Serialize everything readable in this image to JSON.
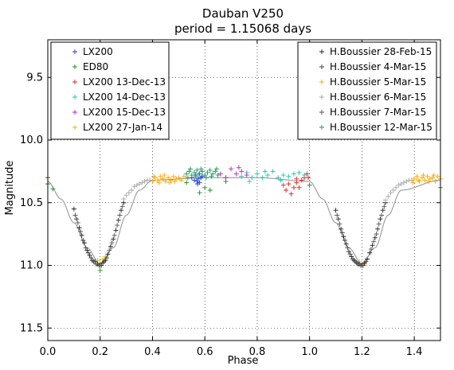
{
  "chart_data": {
    "type": "scatter",
    "title": "Dauban V250",
    "subtitle": "period = 1.15068 days",
    "xlabel": "Phase",
    "ylabel": "Magnitude",
    "xlim": [
      0.0,
      1.5
    ],
    "ylim": [
      11.6,
      9.2
    ],
    "y_inverted": true,
    "x_ticks": [
      "0.0",
      "0.2",
      "0.4",
      "0.6",
      "0.8",
      "1.0",
      "1.2",
      "1.4"
    ],
    "y_ticks": [
      "9.5",
      "10.0",
      "10.5",
      "11.0",
      "11.5"
    ],
    "grid": true,
    "marker": "+",
    "legend_left_position": "top-left",
    "legend_right_position": "top-right",
    "model_curve": {
      "color": "#999999",
      "description_points": {
        "x": [
          0.0,
          0.05,
          0.1,
          0.15,
          0.2,
          0.25,
          0.3,
          0.35,
          0.4,
          0.6,
          0.8,
          1.0,
          1.05,
          1.1,
          1.15,
          1.2,
          1.25,
          1.3,
          1.35,
          1.5
        ],
        "y": [
          10.33,
          10.47,
          10.66,
          10.86,
          10.99,
          10.86,
          10.6,
          10.4,
          10.32,
          10.3,
          10.3,
          10.33,
          10.47,
          10.66,
          10.86,
          10.99,
          10.86,
          10.6,
          10.4,
          10.32
        ]
      }
    },
    "series": [
      {
        "name": "LX200",
        "color": "#1f3fd8",
        "points": [
          [
            0.55,
            10.3
          ],
          [
            0.56,
            10.32
          ],
          [
            0.565,
            10.28
          ],
          [
            0.57,
            10.33
          ],
          [
            0.575,
            10.31
          ],
          [
            0.58,
            10.34
          ],
          [
            0.585,
            10.3
          ],
          [
            0.59,
            10.29
          ],
          [
            0.572,
            10.35
          ],
          [
            0.578,
            10.27
          ]
        ]
      },
      {
        "name": "ED80",
        "color": "#1a8f1a",
        "points": [
          [
            0.0,
            10.35
          ],
          [
            0.02,
            10.39
          ],
          [
            0.2,
            11.04
          ],
          [
            0.53,
            10.34
          ],
          [
            0.6,
            10.38
          ],
          [
            0.62,
            10.4
          ],
          [
            0.58,
            10.42
          ],
          [
            1.0,
            10.36
          ],
          [
            1.5,
            10.38
          ],
          [
            0.68,
            10.33
          ]
        ]
      },
      {
        "name": "LX200 13-Dec-13",
        "color": "#e02020",
        "points": [
          [
            0.9,
            10.36
          ],
          [
            0.91,
            10.4
          ],
          [
            0.92,
            10.35
          ],
          [
            0.93,
            10.43
          ],
          [
            0.94,
            10.38
          ],
          [
            0.95,
            10.34
          ],
          [
            0.96,
            10.38
          ],
          [
            0.97,
            10.32
          ],
          [
            0.98,
            10.3
          ],
          [
            0.99,
            10.27
          ],
          [
            0.995,
            10.3
          ],
          [
            0.0,
            10.3
          ],
          [
            0.95,
            10.31
          ]
        ]
      },
      {
        "name": "LX200 14-Dec-13",
        "color": "#20c4a8",
        "points": [
          [
            0.74,
            10.29
          ],
          [
            0.76,
            10.26
          ],
          [
            0.78,
            10.3
          ],
          [
            0.8,
            10.27
          ],
          [
            0.82,
            10.3
          ],
          [
            0.84,
            10.28
          ],
          [
            0.86,
            10.25
          ],
          [
            0.88,
            10.3
          ],
          [
            0.9,
            10.28
          ],
          [
            0.92,
            10.29
          ],
          [
            0.94,
            10.27
          ],
          [
            0.96,
            10.26
          ],
          [
            0.98,
            10.28
          ],
          [
            0.77,
            10.33
          ],
          [
            0.83,
            10.25
          ],
          [
            0.89,
            10.32
          ]
        ]
      },
      {
        "name": "LX200 15-Dec-13",
        "color": "#c020c0",
        "points": [
          [
            0.7,
            10.23
          ],
          [
            0.72,
            10.27
          ],
          [
            0.74,
            10.25
          ],
          [
            0.76,
            10.28
          ],
          [
            0.68,
            10.3
          ],
          [
            0.66,
            10.27
          ],
          [
            0.73,
            10.22
          ]
        ]
      },
      {
        "name": "LX200 27-Jan-14",
        "color": "#d8c010",
        "points": [
          [
            0.2,
            10.98
          ],
          [
            0.21,
            10.95
          ],
          [
            0.19,
            10.96
          ],
          [
            1.19,
            10.97
          ],
          [
            1.21,
            10.99
          ],
          [
            0.22,
            10.93
          ]
        ]
      },
      {
        "name": "H.Boussier 28-Feb-15",
        "color": "#202020",
        "points": [
          [
            0.1,
            10.55
          ],
          [
            0.11,
            10.63
          ],
          [
            0.12,
            10.7
          ],
          [
            0.13,
            10.76
          ],
          [
            0.14,
            10.82
          ],
          [
            0.15,
            10.88
          ],
          [
            0.16,
            10.92
          ],
          [
            0.17,
            10.96
          ],
          [
            0.18,
            10.97
          ],
          [
            0.19,
            10.99
          ],
          [
            0.2,
            11.0
          ],
          [
            0.21,
            10.98
          ],
          [
            0.22,
            10.96
          ],
          [
            0.23,
            10.91
          ],
          [
            0.24,
            10.85
          ],
          [
            0.25,
            10.79
          ],
          [
            0.26,
            10.72
          ],
          [
            0.27,
            10.64
          ],
          [
            0.28,
            10.56
          ],
          [
            0.29,
            10.5
          ],
          [
            1.1,
            10.56
          ],
          [
            1.11,
            10.63
          ],
          [
            1.12,
            10.71
          ],
          [
            1.13,
            10.77
          ],
          [
            1.14,
            10.83
          ],
          [
            1.15,
            10.89
          ],
          [
            1.16,
            10.93
          ],
          [
            1.17,
            10.96
          ],
          [
            1.18,
            10.98
          ],
          [
            1.19,
            10.99
          ],
          [
            1.2,
            11.0
          ],
          [
            1.21,
            10.98
          ],
          [
            1.22,
            10.95
          ],
          [
            1.23,
            10.9
          ],
          [
            1.24,
            10.84
          ],
          [
            1.25,
            10.78
          ],
          [
            1.26,
            10.71
          ],
          [
            1.27,
            10.63
          ],
          [
            1.28,
            10.56
          ],
          [
            1.29,
            10.5
          ]
        ]
      },
      {
        "name": "H.Boussier 4-Mar-15",
        "color": "#404040",
        "points": [
          [
            0.125,
            10.73
          ],
          [
            0.135,
            10.8
          ],
          [
            0.145,
            10.86
          ],
          [
            0.155,
            10.9
          ],
          [
            0.165,
            10.94
          ],
          [
            0.175,
            10.97
          ],
          [
            0.185,
            10.99
          ],
          [
            0.195,
            11.0
          ],
          [
            0.205,
            11.0
          ],
          [
            0.215,
            10.97
          ],
          [
            0.225,
            10.94
          ],
          [
            1.125,
            10.74
          ],
          [
            1.135,
            10.8
          ],
          [
            1.145,
            10.86
          ],
          [
            1.155,
            10.91
          ],
          [
            1.165,
            10.95
          ],
          [
            1.175,
            10.97
          ],
          [
            1.185,
            10.99
          ],
          [
            1.195,
            11.0
          ],
          [
            1.205,
            11.0
          ],
          [
            1.215,
            10.97
          ]
        ]
      },
      {
        "name": "H.Boussier 5-Mar-15",
        "color": "#ffa500",
        "points": [
          [
            0.4,
            10.33
          ],
          [
            0.41,
            10.3
          ],
          [
            0.42,
            10.32
          ],
          [
            0.43,
            10.29
          ],
          [
            0.44,
            10.31
          ],
          [
            0.45,
            10.33
          ],
          [
            0.46,
            10.3
          ],
          [
            0.47,
            10.32
          ],
          [
            0.48,
            10.29
          ],
          [
            0.49,
            10.31
          ],
          [
            0.5,
            10.3
          ],
          [
            0.51,
            10.32
          ],
          [
            0.52,
            10.29
          ],
          [
            1.4,
            10.31
          ],
          [
            1.41,
            10.29
          ],
          [
            1.42,
            10.33
          ],
          [
            1.43,
            10.3
          ],
          [
            1.44,
            10.32
          ],
          [
            1.45,
            10.29
          ],
          [
            1.46,
            10.31
          ],
          [
            1.47,
            10.3
          ],
          [
            1.48,
            10.33
          ],
          [
            1.49,
            10.29
          ],
          [
            1.5,
            10.31
          ],
          [
            1.395,
            10.34
          ],
          [
            1.415,
            10.32
          ],
          [
            1.435,
            10.28
          ],
          [
            1.455,
            10.33
          ],
          [
            1.475,
            10.28
          ],
          [
            0.405,
            10.29
          ],
          [
            0.425,
            10.34
          ],
          [
            0.445,
            10.28
          ],
          [
            0.465,
            10.34
          ],
          [
            0.485,
            10.33
          ]
        ]
      },
      {
        "name": "H.Boussier 6-Mar-15",
        "color": "#a8a8a8",
        "points": [
          [
            0.29,
            10.47
          ],
          [
            0.3,
            10.44
          ],
          [
            0.31,
            10.42
          ],
          [
            0.32,
            10.4
          ],
          [
            0.33,
            10.37
          ],
          [
            0.34,
            10.36
          ],
          [
            0.35,
            10.35
          ],
          [
            0.36,
            10.34
          ],
          [
            0.37,
            10.33
          ],
          [
            0.38,
            10.32
          ],
          [
            0.39,
            10.32
          ],
          [
            1.29,
            10.48
          ],
          [
            1.3,
            10.45
          ],
          [
            1.31,
            10.42
          ],
          [
            1.32,
            10.4
          ],
          [
            1.33,
            10.38
          ],
          [
            1.34,
            10.36
          ],
          [
            1.35,
            10.35
          ],
          [
            1.36,
            10.34
          ],
          [
            1.37,
            10.33
          ],
          [
            1.38,
            10.32
          ],
          [
            1.39,
            10.32
          ]
        ]
      },
      {
        "name": "H.Boussier 7-Mar-15",
        "color": "#555555",
        "points": [
          [
            0.105,
            10.6
          ],
          [
            0.115,
            10.66
          ],
          [
            0.235,
            10.88
          ],
          [
            0.245,
            10.82
          ],
          [
            0.255,
            10.76
          ],
          [
            0.265,
            10.68
          ],
          [
            0.275,
            10.6
          ],
          [
            0.285,
            10.53
          ],
          [
            1.105,
            10.6
          ],
          [
            1.115,
            10.67
          ],
          [
            1.235,
            10.87
          ],
          [
            1.245,
            10.81
          ],
          [
            1.255,
            10.75
          ],
          [
            1.265,
            10.67
          ],
          [
            1.275,
            10.6
          ],
          [
            1.285,
            10.53
          ]
        ]
      },
      {
        "name": "H.Boussier 12-Mar-15",
        "color": "#1a9a5a",
        "points": [
          [
            0.53,
            10.27
          ],
          [
            0.54,
            10.25
          ],
          [
            0.55,
            10.28
          ],
          [
            0.56,
            10.26
          ],
          [
            0.57,
            10.24
          ],
          [
            0.58,
            10.27
          ],
          [
            0.59,
            10.25
          ],
          [
            0.6,
            10.28
          ],
          [
            0.61,
            10.26
          ],
          [
            0.62,
            10.24
          ],
          [
            0.63,
            10.27
          ],
          [
            0.64,
            10.25
          ],
          [
            0.65,
            10.28
          ],
          [
            0.535,
            10.3
          ],
          [
            0.545,
            10.23
          ],
          [
            0.565,
            10.29
          ],
          [
            0.585,
            10.23
          ],
          [
            0.605,
            10.3
          ],
          [
            0.625,
            10.29
          ],
          [
            0.645,
            10.23
          ]
        ]
      }
    ]
  }
}
